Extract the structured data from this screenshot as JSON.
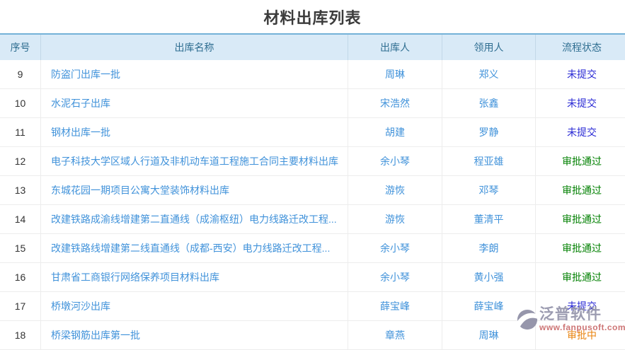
{
  "title": "材料出库列表",
  "table": {
    "columns": [
      {
        "key": "no",
        "label": "序号"
      },
      {
        "key": "name",
        "label": "出库名称"
      },
      {
        "key": "issuer",
        "label": "出库人"
      },
      {
        "key": "recipient",
        "label": "领用人"
      },
      {
        "key": "status",
        "label": "流程状态"
      }
    ],
    "rows": [
      {
        "no": "9",
        "name": "防盗门出库一批",
        "issuer": "周琳",
        "recipient": "郑义",
        "status": "未提交"
      },
      {
        "no": "10",
        "name": "水泥石子出库",
        "issuer": "宋浩然",
        "recipient": "张鑫",
        "status": "未提交"
      },
      {
        "no": "11",
        "name": "钢材出库一批",
        "issuer": "胡建",
        "recipient": "罗静",
        "status": "未提交"
      },
      {
        "no": "12",
        "name": "电子科技大学区域人行道及非机动车道工程施工合同主要材料出库",
        "issuer": "余小琴",
        "recipient": "程亚雄",
        "status": "审批通过"
      },
      {
        "no": "13",
        "name": "东城花园一期项目公寓大堂装饰材料出库",
        "issuer": "游恢",
        "recipient": "邓琴",
        "status": "审批通过"
      },
      {
        "no": "14",
        "name": "改建铁路成渝线增建第二直通线（成渝枢纽）电力线路迁改工程...",
        "issuer": "游恢",
        "recipient": "董清平",
        "status": "审批通过"
      },
      {
        "no": "15",
        "name": "改建铁路线增建第二线直通线（成都-西安）电力线路迁改工程...",
        "issuer": "余小琴",
        "recipient": "李朗",
        "status": "审批通过"
      },
      {
        "no": "16",
        "name": "甘肃省工商银行网络保养项目材料出库",
        "issuer": "余小琴",
        "recipient": "黄小强",
        "status": "审批通过"
      },
      {
        "no": "17",
        "name": "桥墩河沙出库",
        "issuer": "薛宝峰",
        "recipient": "薛宝峰",
        "status": "未提交"
      },
      {
        "no": "18",
        "name": "桥梁钢筋出库第一批",
        "issuer": "章燕",
        "recipient": "周琳",
        "status": "审批中"
      }
    ]
  },
  "status_colors": {
    "未提交": "#2b2bd5",
    "审批通过": "#018001",
    "审批中": "#e8820c"
  },
  "colors": {
    "link": "#4092da",
    "header_bg": "#d9eaf7",
    "header_text": "#2f6e91",
    "top_border": "#74b2d8"
  },
  "watermark": {
    "brand": "泛普软件",
    "url": "www.fanpusoft.com"
  }
}
